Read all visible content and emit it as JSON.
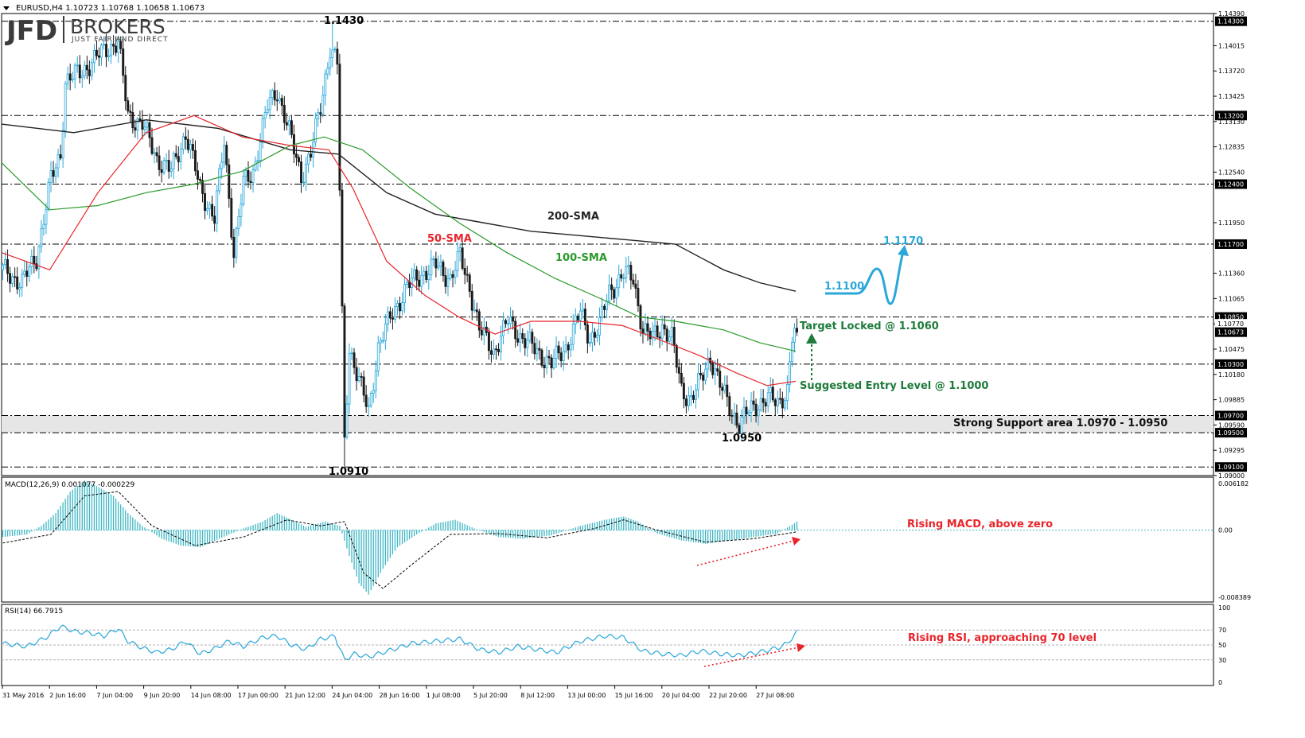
{
  "symbol_header": "EURUSD,H4  1.10723 1.10768 1.10658 1.10673",
  "logo": {
    "jfd": "JFD",
    "brokers": "BROKERS",
    "tagline": "JUST FAIR AND DIRECT"
  },
  "colors": {
    "bull": "#29a7d9",
    "bear": "#1a1a1a",
    "sma50": "#e8252b",
    "sma100": "#2a9a2a",
    "sma200": "#222222",
    "grid_dash": "#000000",
    "annotation_green": "#1e7b3b",
    "annotation_red": "#e8252b",
    "projection": "#29a7d9",
    "hist": "#3fb7c4"
  },
  "chart_data": {
    "type": "candlestick",
    "timeframe": "H4",
    "ylim": [
      1.09,
      1.1439
    ],
    "y_ticks": [
      1.1439,
      1.14015,
      1.1372,
      1.13425,
      1.1313,
      1.12835,
      1.1254,
      1.1195,
      1.1136,
      1.11065,
      1.1077,
      1.10475,
      1.1018,
      1.09885,
      1.0959,
      1.09295,
      1.09
    ],
    "y_tick_labels": [
      "1.14390",
      "1.14015",
      "1.13720",
      "1.13425",
      "1.13130",
      "1.12835",
      "1.12540",
      "1.11950",
      "1.11360",
      "1.11065",
      "1.10770",
      "1.10475",
      "1.10180",
      "1.09885",
      "1.09590",
      "1.09295",
      "1.09000"
    ],
    "horizontal_levels": [
      1.143,
      1.132,
      1.124,
      1.117,
      1.1085,
      1.103,
      1.097,
      1.095,
      1.091
    ],
    "level_labels": [
      "1.14300",
      "1.13200",
      "1.12400",
      "1.11700",
      "1.10850",
      "1.10300",
      "1.09700",
      "1.09500",
      "1.09100"
    ],
    "current_price": 1.10673,
    "current_price_label": "1.10673",
    "last_close_label": "1.10770",
    "support_zone": [
      1.095,
      1.097
    ],
    "x_tick_labels": [
      "31 May 2016",
      "2 Jun 16:00",
      "7 Jun 04:00",
      "9 Jun 20:00",
      "14 Jun 08:00",
      "17 Jun 00:00",
      "21 Jun 12:00",
      "24 Jun 04:00",
      "28 Jun 16:00",
      "1 Jul 08:00",
      "5 Jul 20:00",
      "8 Jul 12:00",
      "13 Jul 00:00",
      "15 Jul 16:00",
      "20 Jul 04:00",
      "22 Jul 20:00",
      "27 Jul 08:00"
    ],
    "close_path": [
      [
        0,
        1.114
      ],
      [
        8,
        1.1125
      ],
      [
        14,
        1.1155
      ],
      [
        20,
        1.1245
      ],
      [
        24,
        1.1275
      ],
      [
        26,
        1.136
      ],
      [
        32,
        1.137
      ],
      [
        38,
        1.1385
      ],
      [
        44,
        1.14
      ],
      [
        48,
        1.1405
      ],
      [
        52,
        1.132
      ],
      [
        58,
        1.131
      ],
      [
        64,
        1.127
      ],
      [
        70,
        1.1255
      ],
      [
        76,
        1.13
      ],
      [
        82,
        1.1235
      ],
      [
        88,
        1.12
      ],
      [
        92,
        1.129
      ],
      [
        96,
        1.116
      ],
      [
        100,
        1.124
      ],
      [
        104,
        1.1255
      ],
      [
        110,
        1.133
      ],
      [
        114,
        1.135
      ],
      [
        118,
        1.131
      ],
      [
        124,
        1.125
      ],
      [
        128,
        1.1275
      ],
      [
        132,
        1.133
      ],
      [
        136,
        1.14
      ],
      [
        139,
        1.138
      ],
      [
        142,
        1.094
      ],
      [
        144,
        1.105
      ],
      [
        148,
        1.101
      ],
      [
        152,
        1.0975
      ],
      [
        156,
        1.105
      ],
      [
        162,
        1.109
      ],
      [
        168,
        1.112
      ],
      [
        174,
        1.1135
      ],
      [
        180,
        1.1145
      ],
      [
        186,
        1.113
      ],
      [
        190,
        1.1155
      ],
      [
        194,
        1.112
      ],
      [
        198,
        1.107
      ],
      [
        204,
        1.1045
      ],
      [
        210,
        1.108
      ],
      [
        216,
        1.106
      ],
      [
        222,
        1.1045
      ],
      [
        228,
        1.103
      ],
      [
        234,
        1.105
      ],
      [
        240,
        1.109
      ],
      [
        244,
        1.106
      ],
      [
        248,
        1.1075
      ],
      [
        252,
        1.1115
      ],
      [
        258,
        1.1135
      ],
      [
        262,
        1.113
      ],
      [
        266,
        1.107
      ],
      [
        270,
        1.106
      ],
      [
        274,
        1.1075
      ],
      [
        278,
        1.106
      ],
      [
        282,
        1.1
      ],
      [
        286,
        1.099
      ],
      [
        290,
        1.101
      ],
      [
        294,
        1.104
      ],
      [
        298,
        1.1005
      ],
      [
        302,
        1.098
      ],
      [
        306,
        1.096
      ],
      [
        310,
        1.0975
      ],
      [
        314,
        1.0985
      ],
      [
        318,
        1.099
      ],
      [
        322,
        1.0985
      ],
      [
        326,
        1.1
      ],
      [
        328,
        1.106
      ],
      [
        330,
        1.107
      ]
    ],
    "sma50_path": [
      [
        0,
        1.116
      ],
      [
        20,
        1.114
      ],
      [
        40,
        1.123
      ],
      [
        60,
        1.13
      ],
      [
        80,
        1.132
      ],
      [
        100,
        1.1295
      ],
      [
        120,
        1.1285
      ],
      [
        136,
        1.128
      ],
      [
        146,
        1.1235
      ],
      [
        160,
        1.115
      ],
      [
        176,
        1.111
      ],
      [
        190,
        1.1085
      ],
      [
        205,
        1.1065
      ],
      [
        220,
        1.108
      ],
      [
        240,
        1.108
      ],
      [
        258,
        1.1075
      ],
      [
        272,
        1.106
      ],
      [
        290,
        1.104
      ],
      [
        305,
        1.102
      ],
      [
        318,
        1.1005
      ],
      [
        330,
        1.101
      ]
    ],
    "sma100_path": [
      [
        0,
        1.1265
      ],
      [
        20,
        1.121
      ],
      [
        40,
        1.1215
      ],
      [
        60,
        1.123
      ],
      [
        80,
        1.124
      ],
      [
        100,
        1.1255
      ],
      [
        120,
        1.1285
      ],
      [
        134,
        1.1295
      ],
      [
        150,
        1.128
      ],
      [
        170,
        1.1235
      ],
      [
        190,
        1.1195
      ],
      [
        210,
        1.116
      ],
      [
        230,
        1.113
      ],
      [
        250,
        1.1105
      ],
      [
        265,
        1.1085
      ],
      [
        280,
        1.108
      ],
      [
        300,
        1.107
      ],
      [
        315,
        1.1055
      ],
      [
        330,
        1.1045
      ]
    ],
    "sma200_path": [
      [
        0,
        1.131
      ],
      [
        30,
        1.13
      ],
      [
        60,
        1.1315
      ],
      [
        90,
        1.1305
      ],
      [
        120,
        1.128
      ],
      [
        140,
        1.1275
      ],
      [
        160,
        1.123
      ],
      [
        180,
        1.1205
      ],
      [
        200,
        1.1195
      ],
      [
        220,
        1.1185
      ],
      [
        240,
        1.118
      ],
      [
        260,
        1.1175
      ],
      [
        280,
        1.117
      ],
      [
        300,
        1.114
      ],
      [
        315,
        1.1125
      ],
      [
        330,
        1.1115
      ]
    ],
    "highs_lows_marks": {
      "high_1430": "1.1430",
      "low_0910": "1.0910",
      "low_0950": "1.0950"
    },
    "sma_labels": {
      "sma50": "50-SMA",
      "sma100": "100-SMA",
      "sma200": "200-SMA"
    },
    "annotations": {
      "target": "Target Locked @ 1.1060",
      "entry": "Suggested Entry Level @ 1.1000",
      "support": "Strong Support area 1.0970 - 1.0950",
      "proj_1100": "1.1100",
      "proj_1170": "1.1170"
    },
    "macd": {
      "label": "MACD(12,26,9) 0.001077 -0.000229",
      "ylim": [
        -0.00838,
        0.00618
      ],
      "ticks": [
        "0.006182",
        "0.00",
        "-0.008389"
      ],
      "annotation": "Rising MACD, above zero",
      "hist_path": [
        [
          0,
          -0.0008
        ],
        [
          10,
          -0.0005
        ],
        [
          16,
          0.0005
        ],
        [
          22,
          0.002
        ],
        [
          28,
          0.0045
        ],
        [
          34,
          0.0058
        ],
        [
          40,
          0.005
        ],
        [
          46,
          0.004
        ],
        [
          52,
          0.002
        ],
        [
          58,
          0.0005
        ],
        [
          66,
          -0.001
        ],
        [
          74,
          -0.0018
        ],
        [
          82,
          -0.002
        ],
        [
          90,
          -0.001
        ],
        [
          100,
          0.0002
        ],
        [
          108,
          0.001
        ],
        [
          114,
          0.002
        ],
        [
          120,
          0.0012
        ],
        [
          126,
          0.0004
        ],
        [
          134,
          0.001
        ],
        [
          140,
          0.0005
        ],
        [
          144,
          -0.003
        ],
        [
          148,
          -0.0062
        ],
        [
          152,
          -0.0075
        ],
        [
          158,
          -0.0045
        ],
        [
          164,
          -0.002
        ],
        [
          172,
          -0.0005
        ],
        [
          180,
          0.0008
        ],
        [
          188,
          0.0012
        ],
        [
          196,
          0.0002
        ],
        [
          206,
          -0.0008
        ],
        [
          216,
          -0.001
        ],
        [
          228,
          -0.0006
        ],
        [
          240,
          0.0005
        ],
        [
          250,
          0.0012
        ],
        [
          258,
          0.0016
        ],
        [
          264,
          0.001
        ],
        [
          272,
          -0.0004
        ],
        [
          282,
          -0.0012
        ],
        [
          292,
          -0.0016
        ],
        [
          302,
          -0.0012
        ],
        [
          312,
          -0.0008
        ],
        [
          322,
          -0.0004
        ],
        [
          330,
          0.001
        ]
      ],
      "signal_path": [
        [
          0,
          -0.0015
        ],
        [
          20,
          -0.0005
        ],
        [
          34,
          0.004
        ],
        [
          48,
          0.0045
        ],
        [
          62,
          0.0005
        ],
        [
          80,
          -0.0018
        ],
        [
          100,
          -0.0008
        ],
        [
          118,
          0.0012
        ],
        [
          132,
          0.0005
        ],
        [
          142,
          0.001
        ],
        [
          150,
          -0.005
        ],
        [
          158,
          -0.0068
        ],
        [
          170,
          -0.004
        ],
        [
          186,
          -0.0005
        ],
        [
          206,
          -0.0004
        ],
        [
          226,
          -0.0009
        ],
        [
          246,
          0.0002
        ],
        [
          258,
          0.0012
        ],
        [
          272,
          0.0
        ],
        [
          292,
          -0.0014
        ],
        [
          312,
          -0.001
        ],
        [
          330,
          -0.0002
        ]
      ]
    },
    "rsi": {
      "label": "RSI(14) 66.7915",
      "ylim": [
        0,
        100
      ],
      "ticks": [
        100,
        70,
        50,
        30,
        0
      ],
      "tick_labels": [
        "100",
        "70",
        "50",
        "30",
        "0"
      ],
      "annotation": "Rising RSI, approaching 70 level",
      "path": [
        [
          0,
          52
        ],
        [
          10,
          48
        ],
        [
          18,
          60
        ],
        [
          24,
          75
        ],
        [
          30,
          68
        ],
        [
          36,
          66
        ],
        [
          42,
          62
        ],
        [
          48,
          72
        ],
        [
          52,
          55
        ],
        [
          58,
          46
        ],
        [
          64,
          40
        ],
        [
          70,
          44
        ],
        [
          76,
          55
        ],
        [
          82,
          38
        ],
        [
          88,
          45
        ],
        [
          94,
          55
        ],
        [
          100,
          48
        ],
        [
          108,
          60
        ],
        [
          114,
          62
        ],
        [
          120,
          50
        ],
        [
          126,
          44
        ],
        [
          132,
          58
        ],
        [
          138,
          62
        ],
        [
          142,
          30
        ],
        [
          146,
          38
        ],
        [
          152,
          34
        ],
        [
          160,
          42
        ],
        [
          170,
          52
        ],
        [
          180,
          55
        ],
        [
          190,
          58
        ],
        [
          198,
          44
        ],
        [
          206,
          40
        ],
        [
          214,
          48
        ],
        [
          222,
          44
        ],
        [
          230,
          40
        ],
        [
          240,
          55
        ],
        [
          250,
          62
        ],
        [
          258,
          60
        ],
        [
          266,
          42
        ],
        [
          274,
          38
        ],
        [
          282,
          36
        ],
        [
          290,
          42
        ],
        [
          298,
          38
        ],
        [
          306,
          36
        ],
        [
          314,
          40
        ],
        [
          322,
          46
        ],
        [
          326,
          52
        ],
        [
          330,
          67
        ]
      ]
    }
  }
}
